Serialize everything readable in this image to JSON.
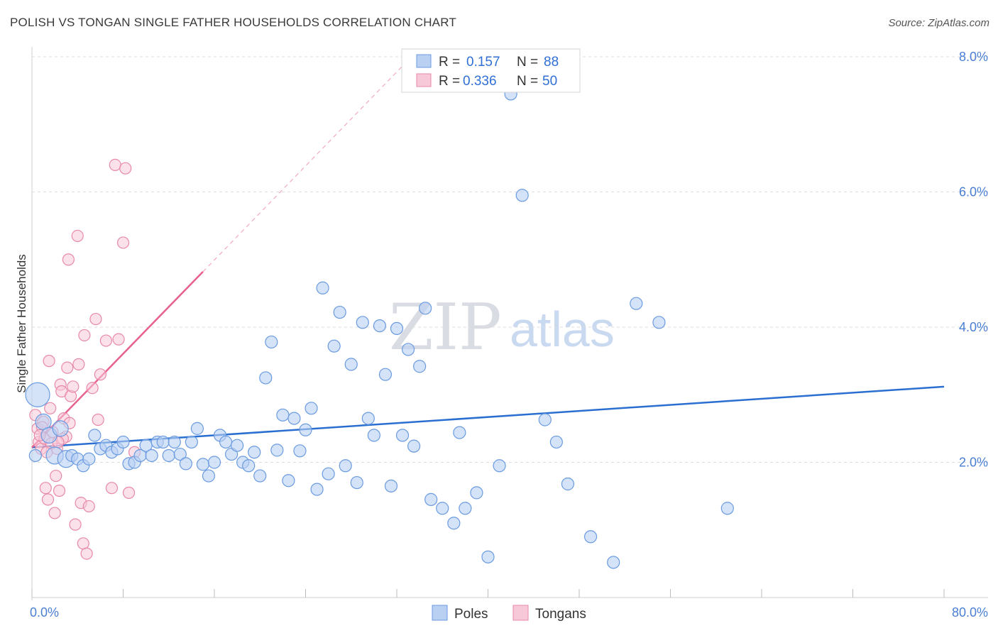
{
  "title": "POLISH VS TONGAN SINGLE FATHER HOUSEHOLDS CORRELATION CHART",
  "source": "Source: ZipAtlas.com",
  "watermark": {
    "zip": "ZIP",
    "atlas": "atlas"
  },
  "colors": {
    "poles": "#6a9be0",
    "poles_fill": "#b9d0f3",
    "tongans": "#e889a6",
    "tongans_fill": "#f7c9d8",
    "poles_line": "#2a6fd0",
    "tongans_line": "#e8608c",
    "tick": "#4a7fd4"
  },
  "legend": {
    "rows": [
      {
        "r_label": "R =",
        "r_value": "0.157",
        "n_label": "N =",
        "n_value": "88"
      },
      {
        "r_label": "R =",
        "r_value": "0.336",
        "n_label": "N =",
        "n_value": "50"
      }
    ],
    "bottom": [
      "Poles",
      "Tongans"
    ]
  },
  "chart_data": {
    "type": "scatter",
    "title": "POLISH VS TONGAN SINGLE FATHER HOUSEHOLDS CORRELATION CHART",
    "xlabel": "",
    "ylabel": "Single Father Households",
    "xlim": [
      0,
      80
    ],
    "ylim": [
      0,
      8
    ],
    "x_tick_labels": [
      "0.0%",
      "80.0%"
    ],
    "y_ticks": [
      2,
      4,
      6,
      8
    ],
    "y_tick_labels": [
      "2.0%",
      "4.0%",
      "6.0%",
      "8.0%"
    ],
    "legend_position": "top-center",
    "series": [
      {
        "name": "Poles",
        "r": 0.157,
        "n": 88,
        "trend": {
          "x0": 0,
          "y0": 2.22,
          "x1": 80,
          "y1": 3.12
        },
        "points": [
          [
            0.5,
            3.0
          ],
          [
            1.0,
            2.6
          ],
          [
            1.5,
            2.4
          ],
          [
            2.0,
            2.1
          ],
          [
            2.5,
            2.5
          ],
          [
            3.0,
            2.05
          ],
          [
            3.5,
            2.1
          ],
          [
            4.0,
            2.05
          ],
          [
            4.5,
            1.95
          ],
          [
            5.0,
            2.05
          ],
          [
            5.5,
            2.4
          ],
          [
            6.0,
            2.2
          ],
          [
            6.5,
            2.25
          ],
          [
            7.0,
            2.15
          ],
          [
            7.5,
            2.2
          ],
          [
            8.0,
            2.3
          ],
          [
            8.5,
            1.98
          ],
          [
            9.0,
            2.0
          ],
          [
            9.5,
            2.1
          ],
          [
            10.0,
            2.25
          ],
          [
            10.5,
            2.1
          ],
          [
            11.0,
            2.3
          ],
          [
            11.5,
            2.3
          ],
          [
            12.0,
            2.1
          ],
          [
            12.5,
            2.3
          ],
          [
            13.0,
            2.12
          ],
          [
            13.5,
            1.98
          ],
          [
            14.0,
            2.3
          ],
          [
            14.5,
            2.5
          ],
          [
            15.0,
            1.97
          ],
          [
            15.5,
            1.8
          ],
          [
            16.0,
            2.0
          ],
          [
            16.5,
            2.4
          ],
          [
            17.0,
            2.3
          ],
          [
            17.5,
            2.12
          ],
          [
            18.0,
            2.25
          ],
          [
            18.5,
            2.0
          ],
          [
            19.0,
            1.95
          ],
          [
            19.5,
            2.15
          ],
          [
            20.0,
            1.8
          ],
          [
            20.5,
            3.25
          ],
          [
            21.0,
            3.78
          ],
          [
            21.5,
            2.18
          ],
          [
            22.0,
            2.7
          ],
          [
            22.5,
            1.73
          ],
          [
            23.0,
            2.65
          ],
          [
            23.5,
            2.17
          ],
          [
            24.0,
            2.48
          ],
          [
            24.5,
            2.8
          ],
          [
            25.0,
            1.6
          ],
          [
            25.5,
            4.58
          ],
          [
            26.0,
            1.83
          ],
          [
            26.5,
            3.72
          ],
          [
            27.0,
            4.22
          ],
          [
            27.5,
            1.95
          ],
          [
            28.0,
            3.45
          ],
          [
            28.5,
            1.7
          ],
          [
            29.0,
            4.07
          ],
          [
            29.5,
            2.65
          ],
          [
            30.0,
            2.4
          ],
          [
            30.5,
            4.02
          ],
          [
            31.0,
            3.3
          ],
          [
            31.5,
            1.65
          ],
          [
            32.0,
            3.98
          ],
          [
            32.5,
            2.4
          ],
          [
            33.0,
            3.67
          ],
          [
            33.5,
            2.24
          ],
          [
            34.0,
            3.42
          ],
          [
            34.5,
            4.28
          ],
          [
            35.0,
            1.45
          ],
          [
            36.0,
            1.32
          ],
          [
            37.0,
            1.1
          ],
          [
            37.5,
            2.44
          ],
          [
            38.0,
            1.32
          ],
          [
            39.0,
            1.55
          ],
          [
            40.0,
            0.6
          ],
          [
            41.0,
            1.95
          ],
          [
            42.0,
            7.45
          ],
          [
            43.0,
            5.95
          ],
          [
            45.0,
            2.63
          ],
          [
            46.0,
            2.3
          ],
          [
            47.0,
            1.68
          ],
          [
            49.0,
            0.9
          ],
          [
            51.0,
            0.52
          ],
          [
            53.0,
            4.35
          ],
          [
            55.0,
            4.07
          ],
          [
            61.0,
            1.32
          ],
          [
            0.3,
            2.1
          ]
        ]
      },
      {
        "name": "Tongans",
        "r": 0.336,
        "n": 50,
        "trend": {
          "x0": 0,
          "y0": 2.22,
          "x1": 15,
          "y1": 4.82
        },
        "trend_dashed": {
          "x0": 15,
          "y0": 4.82,
          "x1": 33,
          "y1": 7.95
        },
        "points": [
          [
            0.3,
            2.7
          ],
          [
            0.5,
            2.5
          ],
          [
            0.6,
            2.3
          ],
          [
            0.8,
            2.2
          ],
          [
            1.0,
            2.6
          ],
          [
            1.1,
            2.35
          ],
          [
            1.3,
            2.15
          ],
          [
            1.5,
            3.5
          ],
          [
            1.6,
            2.8
          ],
          [
            1.8,
            2.45
          ],
          [
            2.0,
            1.25
          ],
          [
            2.1,
            1.8
          ],
          [
            2.2,
            2.2
          ],
          [
            2.4,
            1.58
          ],
          [
            2.5,
            3.15
          ],
          [
            2.6,
            3.05
          ],
          [
            2.8,
            2.65
          ],
          [
            3.0,
            2.38
          ],
          [
            3.1,
            3.4
          ],
          [
            3.2,
            5.0
          ],
          [
            3.4,
            2.98
          ],
          [
            3.6,
            3.12
          ],
          [
            3.8,
            1.08
          ],
          [
            4.0,
            5.35
          ],
          [
            4.1,
            3.45
          ],
          [
            4.3,
            1.4
          ],
          [
            4.5,
            0.8
          ],
          [
            4.6,
            3.88
          ],
          [
            4.8,
            0.65
          ],
          [
            5.0,
            1.35
          ],
          [
            5.3,
            3.1
          ],
          [
            5.6,
            4.12
          ],
          [
            5.8,
            2.63
          ],
          [
            6.0,
            3.3
          ],
          [
            6.5,
            3.8
          ],
          [
            7.0,
            1.62
          ],
          [
            7.3,
            6.4
          ],
          [
            7.6,
            3.82
          ],
          [
            8.0,
            5.25
          ],
          [
            8.2,
            6.35
          ],
          [
            8.5,
            1.55
          ],
          [
            9.0,
            2.15
          ],
          [
            1.2,
            1.62
          ],
          [
            1.4,
            1.45
          ],
          [
            2.7,
            2.35
          ],
          [
            0.9,
            2.52
          ],
          [
            1.7,
            2.28
          ],
          [
            0.7,
            2.4
          ],
          [
            3.3,
            2.58
          ],
          [
            2.3,
            2.3
          ]
        ]
      }
    ]
  }
}
